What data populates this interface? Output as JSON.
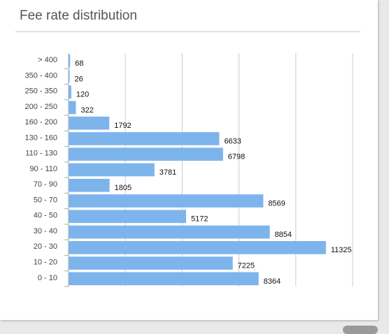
{
  "panel": {
    "title": "Fee rate distribution"
  },
  "colors": {
    "bar": "#7db4ec",
    "grid": "#cccccc",
    "axis": "#aaaaaa"
  },
  "chart_data": {
    "type": "bar",
    "orientation": "horizontal",
    "title": "",
    "xlabel": "",
    "ylabel": "",
    "categories": [
      "> 400",
      "350 - 400",
      "250 - 350",
      "200 - 250",
      "160 - 200",
      "130 - 160",
      "110 - 130",
      "90 - 110",
      "70 - 90",
      "50 - 70",
      "40 - 50",
      "30 - 40",
      "20 - 30",
      "10 - 20",
      "0 - 10"
    ],
    "values": [
      68,
      26,
      120,
      322,
      1792,
      6633,
      6798,
      3781,
      1805,
      8569,
      5172,
      8854,
      11325,
      7225,
      8364
    ],
    "xlim": [
      0,
      12500
    ],
    "grid": true,
    "value_labels": true
  }
}
